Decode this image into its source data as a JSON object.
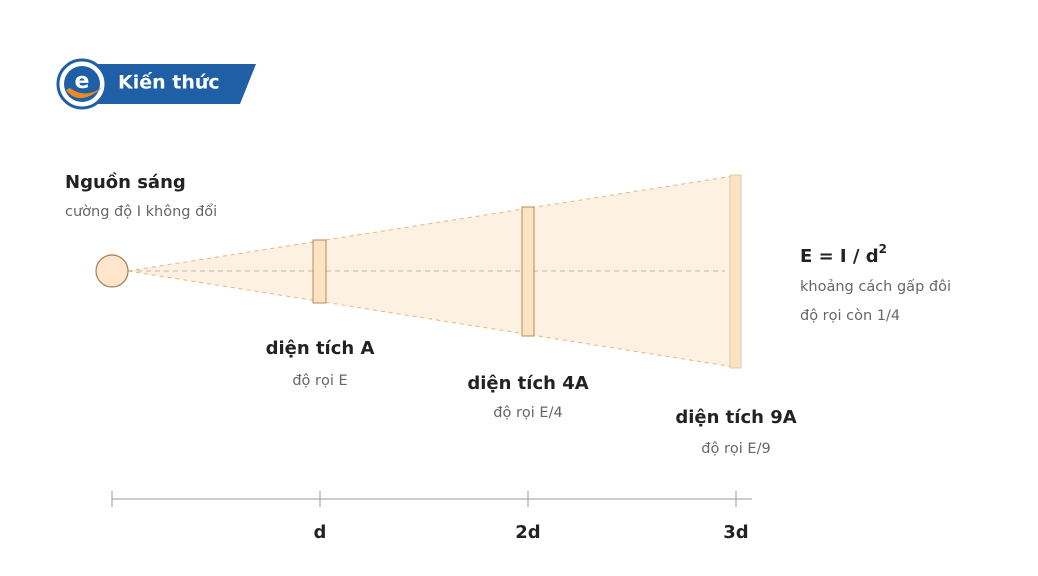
{
  "header": {
    "badge": "Kiến thức"
  },
  "source": {
    "title": "Nguồn sáng",
    "subtitle": "cường độ I không đổi"
  },
  "areas": [
    {
      "label": "diện tích A",
      "illuminance": "độ rọi E"
    },
    {
      "label": "diện tích 4A",
      "illuminance": "độ rọi E/4"
    },
    {
      "label": "diện tích 9A",
      "illuminance": "độ rọi E/9"
    }
  ],
  "formula": {
    "text": "E = I / d",
    "exponent": "2",
    "notes": [
      "khoảng cách gấp đôi",
      "độ rọi còn 1/4"
    ]
  },
  "axis": {
    "ticks": [
      "d",
      "2d",
      "3d"
    ]
  }
}
